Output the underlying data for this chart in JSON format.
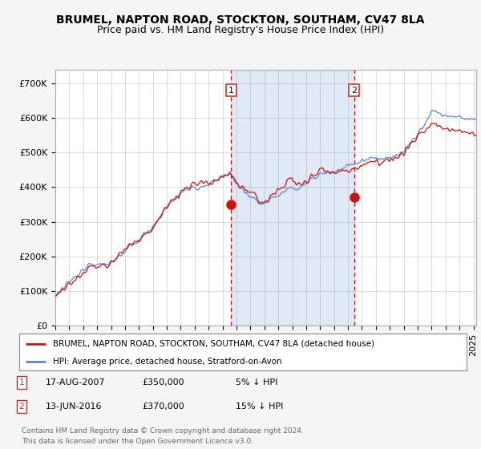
{
  "title": "BRUMEL, NAPTON ROAD, STOCKTON, SOUTHAM, CV47 8LA",
  "subtitle": "Price paid vs. HM Land Registry's House Price Index (HPI)",
  "ylabel_ticks": [
    "£0",
    "£100K",
    "£200K",
    "£300K",
    "£400K",
    "£500K",
    "£600K",
    "£700K"
  ],
  "ytick_vals": [
    0,
    100000,
    200000,
    300000,
    400000,
    500000,
    600000,
    700000
  ],
  "ylim": [
    0,
    740000
  ],
  "xlim_start": 1995.0,
  "xlim_end": 2025.2,
  "hpi_color": "#5588cc",
  "price_color": "#cc1111",
  "sale1_date": 2007.62,
  "sale1_price": 350000,
  "sale2_date": 2016.44,
  "sale2_price": 370000,
  "legend_entry1": "BRUMEL, NAPTON ROAD, STOCKTON, SOUTHAM, CV47 8LA (detached house)",
  "legend_entry2": "HPI: Average price, detached house, Stratford-on-Avon",
  "footer": "Contains HM Land Registry data © Crown copyright and database right 2024.\nThis data is licensed under the Open Government Licence v3.0.",
  "background_color": "#f5f5f5",
  "plot_bg_color": "#ffffff",
  "fill_color": "#ddeeff",
  "title_fontsize": 10,
  "subtitle_fontsize": 9,
  "tick_fontsize": 8
}
